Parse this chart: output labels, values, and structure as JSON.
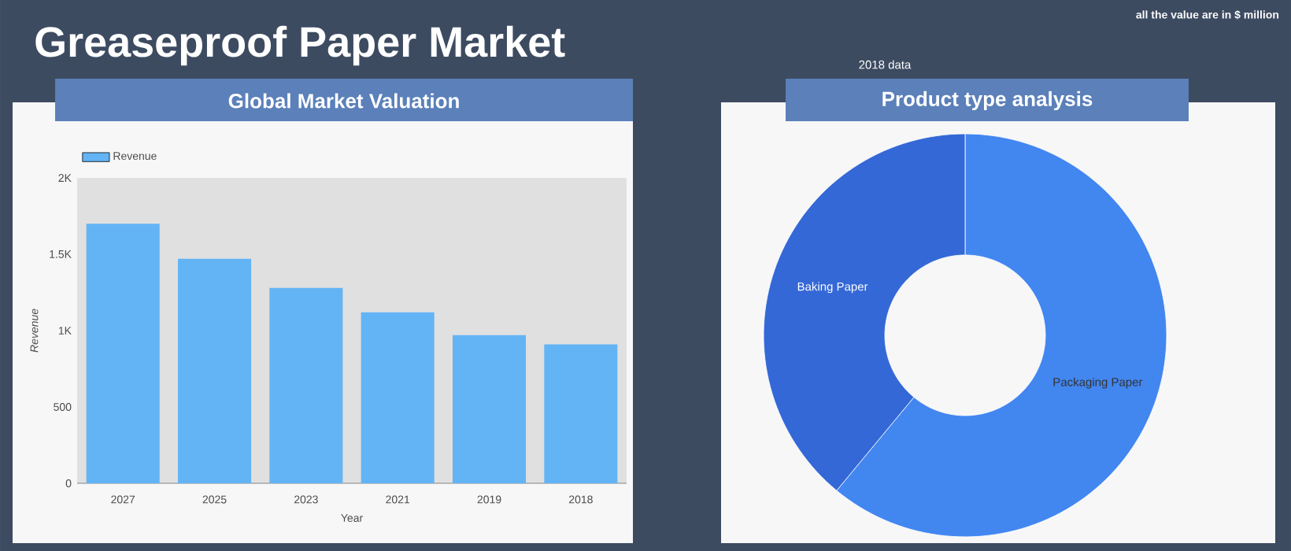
{
  "chart_data": [
    {
      "type": "bar",
      "title": "Global Market Valuation",
      "xlabel": "Year",
      "ylabel": "Revenue",
      "categories": [
        "2027",
        "2025",
        "2023",
        "2021",
        "2019",
        "2018"
      ],
      "series": [
        {
          "name": "Revenue",
          "color": "#63b4f5",
          "values": [
            1700,
            1470,
            1280,
            1120,
            970,
            910
          ]
        }
      ],
      "ylim": [
        0,
        2000
      ],
      "yticks": [
        0,
        500,
        {
          "value": 1000,
          "label": "1K"
        },
        {
          "value": 1500,
          "label": "1.5K"
        },
        {
          "value": 2000,
          "label": "2K"
        }
      ],
      "legend": "top left",
      "annotations": [
        "Greaseproof Paper Market",
        "all the value are in $ million"
      ]
    },
    {
      "type": "donut",
      "title": "Product type analysis",
      "subtitle": "2018 data",
      "categories": [
        "Packaging Paper",
        "Baking Paper"
      ],
      "values": [
        61,
        39
      ],
      "colors": [
        "#4286f0",
        "#3468d6"
      ]
    }
  ]
}
